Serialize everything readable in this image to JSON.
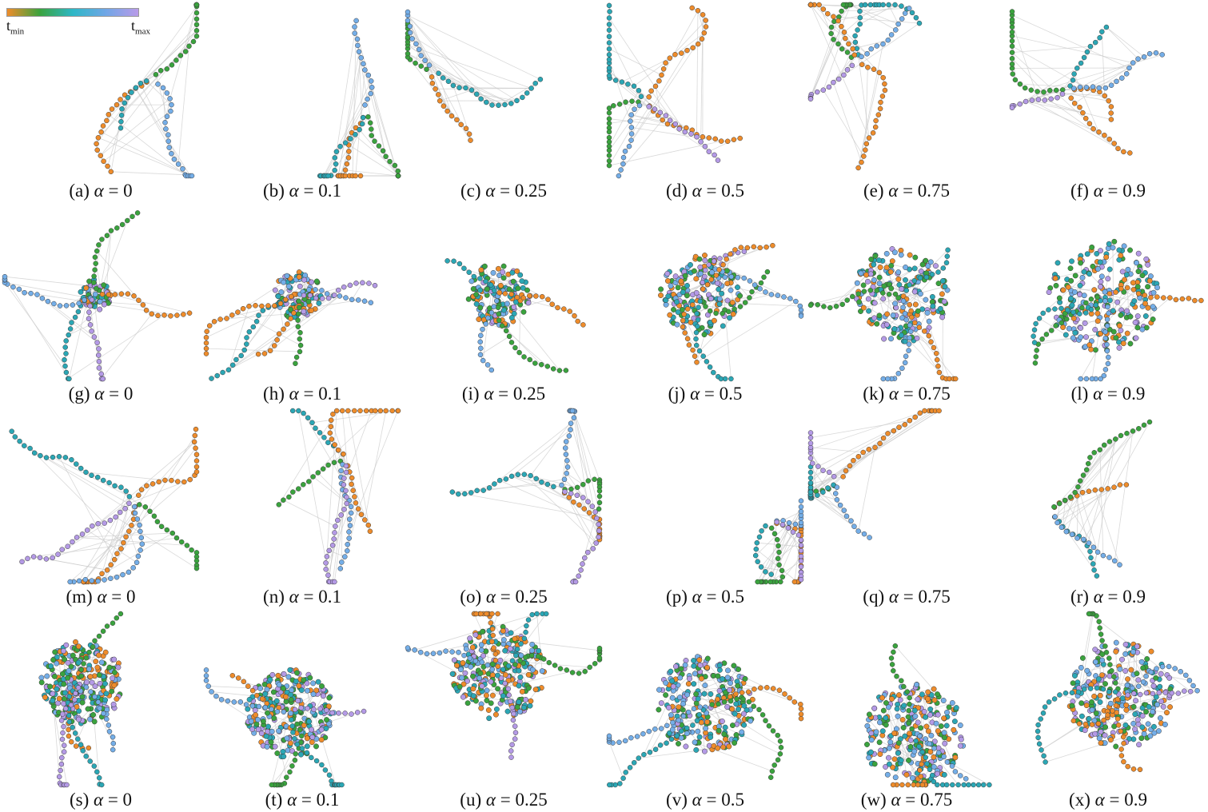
{
  "legend": {
    "min_label": "t",
    "min_sub": "min",
    "max_label": "t",
    "max_sub": "max",
    "gradient": [
      "#ee8c2b",
      "#3aa33e",
      "#2db7c6",
      "#6fa6e6",
      "#b99be8"
    ]
  },
  "colors": {
    "edge": "#c9c9c9",
    "node_stroke": "#3a3a3a",
    "time_palette": [
      "#ee8c2b",
      "#3aa33e",
      "#2ba7b5",
      "#74aee8",
      "#b49ae6"
    ]
  },
  "panels": [
    {
      "label": "(a)",
      "alpha_symbol": "α",
      "equals": "=",
      "value": "0",
      "style": "star"
    },
    {
      "label": "(b)",
      "alpha_symbol": "α",
      "equals": "=",
      "value": "0.1",
      "style": "star"
    },
    {
      "label": "(c)",
      "alpha_symbol": "α",
      "equals": "=",
      "value": "0.25",
      "style": "star"
    },
    {
      "label": "(d)",
      "alpha_symbol": "α",
      "equals": "=",
      "value": "0.5",
      "style": "star"
    },
    {
      "label": "(e)",
      "alpha_symbol": "α",
      "equals": "=",
      "value": "0.75",
      "style": "star"
    },
    {
      "label": "(f)",
      "alpha_symbol": "α",
      "equals": "=",
      "value": "0.9",
      "style": "star"
    },
    {
      "label": "(g)",
      "alpha_symbol": "α",
      "equals": "=",
      "value": "0",
      "style": "cluster"
    },
    {
      "label": "(h)",
      "alpha_symbol": "α",
      "equals": "=",
      "value": "0.1",
      "style": "cluster"
    },
    {
      "label": "(i)",
      "alpha_symbol": "α",
      "equals": "=",
      "value": "0.25",
      "style": "cluster"
    },
    {
      "label": "(j)",
      "alpha_symbol": "α",
      "equals": "=",
      "value": "0.5",
      "style": "cluster"
    },
    {
      "label": "(k)",
      "alpha_symbol": "α",
      "equals": "=",
      "value": "0.75",
      "style": "cluster"
    },
    {
      "label": "(l)",
      "alpha_symbol": "α",
      "equals": "=",
      "value": "0.9",
      "style": "cluster"
    },
    {
      "label": "(m)",
      "alpha_symbol": "α",
      "equals": "=",
      "value": "0",
      "style": "star"
    },
    {
      "label": "(n)",
      "alpha_symbol": "α",
      "equals": "=",
      "value": "0.1",
      "style": "star"
    },
    {
      "label": "(o)",
      "alpha_symbol": "α",
      "equals": "=",
      "value": "0.25",
      "style": "star"
    },
    {
      "label": "(p)",
      "alpha_symbol": "α",
      "equals": "=",
      "value": "0.5",
      "style": "star"
    },
    {
      "label": "(q)",
      "alpha_symbol": "α",
      "equals": "=",
      "value": "0.75",
      "style": "star"
    },
    {
      "label": "(r)",
      "alpha_symbol": "α",
      "equals": "=",
      "value": "0.9",
      "style": "star"
    },
    {
      "label": "(s)",
      "alpha_symbol": "α",
      "equals": "=",
      "value": "0",
      "style": "blob"
    },
    {
      "label": "(t)",
      "alpha_symbol": "α",
      "equals": "=",
      "value": "0.1",
      "style": "blob"
    },
    {
      "label": "(u)",
      "alpha_symbol": "α",
      "equals": "=",
      "value": "0.25",
      "style": "blob"
    },
    {
      "label": "(v)",
      "alpha_symbol": "α",
      "equals": "=",
      "value": "0.5",
      "style": "blob"
    },
    {
      "label": "(w)",
      "alpha_symbol": "α",
      "equals": "=",
      "value": "0.75",
      "style": "blob"
    },
    {
      "label": "(x)",
      "alpha_symbol": "α",
      "equals": "=",
      "value": "0.9",
      "style": "blob"
    }
  ]
}
